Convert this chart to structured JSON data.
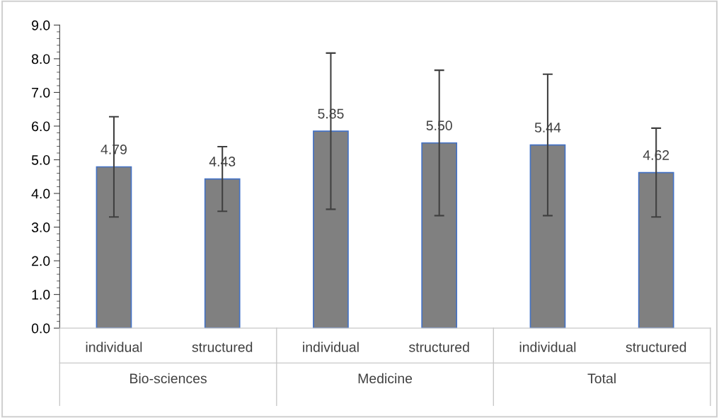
{
  "chart_data": {
    "type": "bar",
    "categories": [
      "individual",
      "structured",
      "individual",
      "structured",
      "individual",
      "structured"
    ],
    "series": [
      {
        "color": "#808080",
        "values": [
          4.79,
          4.43,
          5.85,
          5.5,
          5.44,
          4.62
        ],
        "errors": [
          1.49,
          0.96,
          2.32,
          2.16,
          2.1,
          1.32
        ]
      }
    ],
    "value_labels": [
      "4.79",
      "4.43",
      "5.85",
      "5.50",
      "5.44",
      "4.62"
    ],
    "annotations": [
      "Bio-sciences",
      "Medicine",
      "Total"
    ],
    "ylim": [
      0,
      9
    ],
    "yticks": [
      {
        "value": 0,
        "label": "0.0"
      },
      {
        "value": 1,
        "label": "1.0"
      },
      {
        "value": 2,
        "label": "2.0"
      },
      {
        "value": 3,
        "label": "3.0"
      },
      {
        "value": 4,
        "label": "4.0"
      },
      {
        "value": 5,
        "label": "5.0"
      },
      {
        "value": 6,
        "label": "6.0"
      },
      {
        "value": 7,
        "label": "7.0"
      },
      {
        "value": 8,
        "label": "8.0"
      },
      {
        "value": 9,
        "label": "9.0"
      }
    ],
    "grid": false
  }
}
